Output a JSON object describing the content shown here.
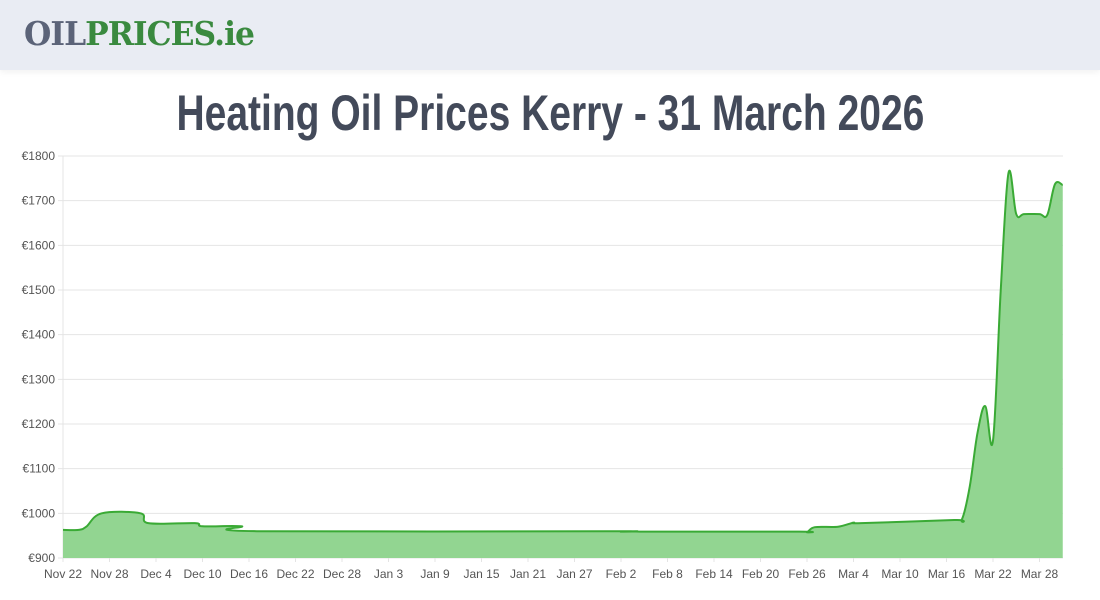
{
  "header": {
    "logo_part1": "OIL",
    "logo_part2": "PRICES.ie"
  },
  "page_title": "Heating Oil Prices Kerry - 31 March 2026",
  "colors": {
    "line": "#3aaa35",
    "fill": "#92d591",
    "grid": "#e4e4e4"
  },
  "chart_data": {
    "type": "area",
    "title": "",
    "xlabel": "",
    "ylabel": "",
    "ylim": [
      900,
      1800
    ],
    "y_ticks": [
      "€900",
      "€1000",
      "€1100",
      "€1200",
      "€1300",
      "€1400",
      "€1500",
      "€1600",
      "€1700",
      "€1800"
    ],
    "x_ticks": [
      "Nov 22",
      "Nov 28",
      "Dec 4",
      "Dec 10",
      "Dec 16",
      "Dec 22",
      "Dec 28",
      "Jan 3",
      "Jan 9",
      "Jan 15",
      "Jan 21",
      "Jan 27",
      "Feb 2",
      "Feb 8",
      "Feb 14",
      "Feb 20",
      "Feb 26",
      "Mar 4",
      "Mar 10",
      "Mar 16",
      "Mar 22",
      "Mar 28"
    ],
    "grid": true,
    "points": [
      [
        "2025-11-22",
        963
      ],
      [
        "2025-11-24",
        963
      ],
      [
        "2025-11-25",
        970
      ],
      [
        "2025-11-27",
        1000
      ],
      [
        "2025-12-02",
        1000
      ],
      [
        "2025-12-03",
        978
      ],
      [
        "2025-12-09",
        978
      ],
      [
        "2025-12-10",
        971
      ],
      [
        "2025-12-15",
        971
      ],
      [
        "2025-12-17",
        960
      ],
      [
        "2026-01-31",
        960
      ],
      [
        "2026-02-02",
        959
      ],
      [
        "2026-02-04",
        960
      ],
      [
        "2026-02-06",
        959
      ],
      [
        "2026-02-25",
        959
      ],
      [
        "2026-02-26",
        958
      ],
      [
        "2026-02-27",
        969
      ],
      [
        "2026-03-02",
        970
      ],
      [
        "2026-03-04",
        979
      ],
      [
        "2026-03-05",
        978
      ],
      [
        "2026-03-17",
        985
      ],
      [
        "2026-03-18",
        987
      ],
      [
        "2026-03-19",
        1060
      ],
      [
        "2026-03-20",
        1180
      ],
      [
        "2026-03-21",
        1240
      ],
      [
        "2026-03-22",
        1163
      ],
      [
        "2026-03-23",
        1500
      ],
      [
        "2026-03-24",
        1762
      ],
      [
        "2026-03-25",
        1670
      ],
      [
        "2026-03-26",
        1670
      ],
      [
        "2026-03-28",
        1670
      ],
      [
        "2026-03-29",
        1668
      ],
      [
        "2026-03-30",
        1737
      ],
      [
        "2026-03-31",
        1735
      ]
    ]
  }
}
